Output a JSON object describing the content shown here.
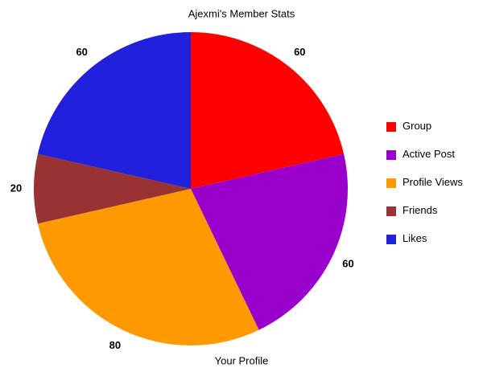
{
  "chart_data": {
    "type": "pie",
    "title": "Ajexmi's Member Stats",
    "xlabel": "Your Profile",
    "categories": [
      "Group",
      "Active Post",
      "Profile Views",
      "Friends",
      "Likes"
    ],
    "values": [
      60,
      60,
      80,
      20,
      60
    ],
    "colors": [
      "#ff0000",
      "#9900cc",
      "#ff9900",
      "#993333",
      "#2020dd"
    ],
    "legend": "right"
  }
}
